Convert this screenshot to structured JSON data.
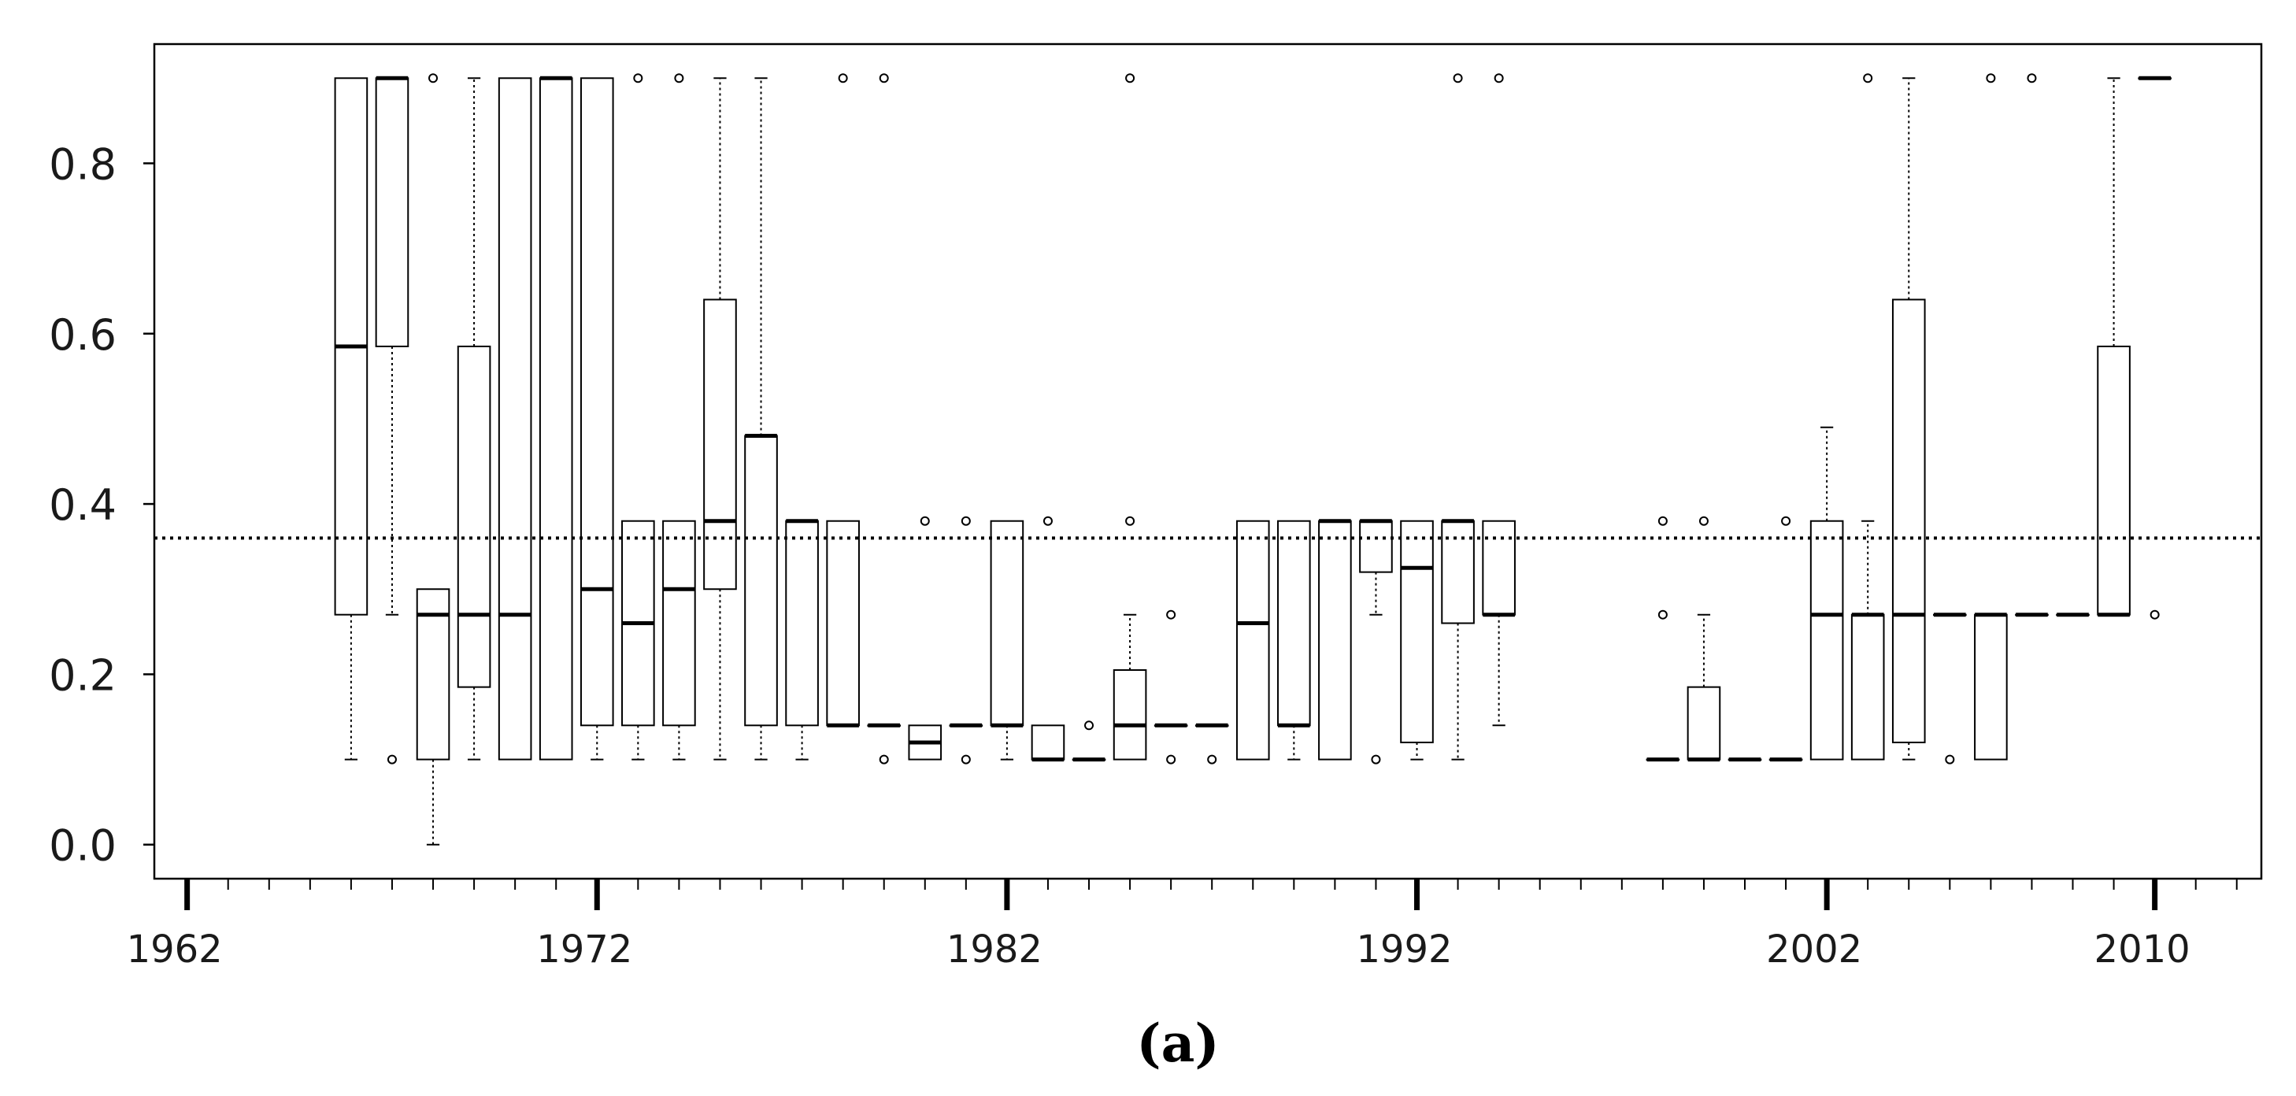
{
  "panel_label": "(a)",
  "chart_data": {
    "type": "box",
    "title": "",
    "xlabel": "",
    "ylabel": "",
    "x_ticks": [
      1962,
      1972,
      1982,
      1992,
      2002,
      2010
    ],
    "y_ticks": [
      0.0,
      0.2,
      0.4,
      0.6,
      0.8
    ],
    "y_tick_labels": [
      "0.0",
      "0.2",
      "0.4",
      "0.6",
      "0.8"
    ],
    "x_tick_labels": [
      "1962",
      "1972",
      "1982",
      "1992",
      "2002",
      "2010"
    ],
    "xlim": [
      1961.2,
      2012.6
    ],
    "ylim": [
      -0.04,
      0.94
    ],
    "reference_line": 0.36,
    "grid": false,
    "colors": {
      "box_fill": "#ffffff",
      "stroke": "#000000"
    },
    "boxes": [
      {
        "year": 1966,
        "min": 0.1,
        "q1": 0.27,
        "median": 0.585,
        "q3": 0.9,
        "max": 0.9,
        "outliers": []
      },
      {
        "year": 1967,
        "min": 0.27,
        "q1": 0.585,
        "median": 0.9,
        "q3": 0.9,
        "max": 0.9,
        "outliers": [
          0.1
        ]
      },
      {
        "year": 1968,
        "min": 0.0,
        "q1": 0.1,
        "median": 0.27,
        "q3": 0.3,
        "max": 0.3,
        "outliers": [
          0.9
        ]
      },
      {
        "year": 1969,
        "min": 0.1,
        "q1": 0.185,
        "median": 0.27,
        "q3": 0.585,
        "max": 0.9,
        "outliers": []
      },
      {
        "year": 1970,
        "min": 0.1,
        "q1": 0.1,
        "median": 0.27,
        "q3": 0.9,
        "max": 0.9,
        "outliers": []
      },
      {
        "year": 1971,
        "min": 0.1,
        "q1": 0.1,
        "median": 0.9,
        "q3": 0.9,
        "max": 0.9,
        "outliers": []
      },
      {
        "year": 1972,
        "min": 0.1,
        "q1": 0.14,
        "median": 0.3,
        "q3": 0.9,
        "max": 0.9,
        "outliers": []
      },
      {
        "year": 1973,
        "min": 0.1,
        "q1": 0.14,
        "median": 0.26,
        "q3": 0.38,
        "max": 0.38,
        "outliers": [
          0.9
        ]
      },
      {
        "year": 1974,
        "min": 0.1,
        "q1": 0.14,
        "median": 0.3,
        "q3": 0.38,
        "max": 0.38,
        "outliers": [
          0.9
        ]
      },
      {
        "year": 1975,
        "min": 0.1,
        "q1": 0.3,
        "median": 0.38,
        "q3": 0.64,
        "max": 0.9,
        "outliers": []
      },
      {
        "year": 1976,
        "min": 0.1,
        "q1": 0.14,
        "median": 0.48,
        "q3": 0.48,
        "max": 0.9,
        "outliers": []
      },
      {
        "year": 1977,
        "min": 0.1,
        "q1": 0.14,
        "median": 0.38,
        "q3": 0.38,
        "max": 0.38,
        "outliers": []
      },
      {
        "year": 1978,
        "min": 0.14,
        "q1": 0.14,
        "median": 0.14,
        "q3": 0.38,
        "max": 0.38,
        "outliers": [
          0.9
        ]
      },
      {
        "year": 1979,
        "min": 0.14,
        "q1": 0.14,
        "median": 0.14,
        "q3": 0.14,
        "max": 0.14,
        "outliers": [
          0.1,
          0.9
        ]
      },
      {
        "year": 1980,
        "min": 0.1,
        "q1": 0.1,
        "median": 0.12,
        "q3": 0.14,
        "max": 0.14,
        "outliers": [
          0.38
        ]
      },
      {
        "year": 1981,
        "min": 0.14,
        "q1": 0.14,
        "median": 0.14,
        "q3": 0.14,
        "max": 0.14,
        "outliers": [
          0.1,
          0.38
        ]
      },
      {
        "year": 1982,
        "min": 0.1,
        "q1": 0.14,
        "median": 0.14,
        "q3": 0.38,
        "max": 0.38,
        "outliers": []
      },
      {
        "year": 1983,
        "min": 0.1,
        "q1": 0.1,
        "median": 0.1,
        "q3": 0.14,
        "max": 0.14,
        "outliers": [
          0.38
        ]
      },
      {
        "year": 1984,
        "min": 0.1,
        "q1": 0.1,
        "median": 0.1,
        "q3": 0.1,
        "max": 0.1,
        "outliers": [
          0.14
        ]
      },
      {
        "year": 1985,
        "min": 0.1,
        "q1": 0.1,
        "median": 0.14,
        "q3": 0.205,
        "max": 0.27,
        "outliers": [
          0.38,
          0.9
        ]
      },
      {
        "year": 1986,
        "min": 0.14,
        "q1": 0.14,
        "median": 0.14,
        "q3": 0.14,
        "max": 0.14,
        "outliers": [
          0.1,
          0.27
        ]
      },
      {
        "year": 1987,
        "min": 0.14,
        "q1": 0.14,
        "median": 0.14,
        "q3": 0.14,
        "max": 0.14,
        "outliers": [
          0.1
        ]
      },
      {
        "year": 1988,
        "min": 0.1,
        "q1": 0.1,
        "median": 0.26,
        "q3": 0.38,
        "max": 0.38,
        "outliers": []
      },
      {
        "year": 1989,
        "min": 0.1,
        "q1": 0.14,
        "median": 0.14,
        "q3": 0.38,
        "max": 0.38,
        "outliers": []
      },
      {
        "year": 1990,
        "min": 0.1,
        "q1": 0.1,
        "median": 0.38,
        "q3": 0.38,
        "max": 0.38,
        "outliers": []
      },
      {
        "year": 1991,
        "min": 0.27,
        "q1": 0.32,
        "median": 0.38,
        "q3": 0.38,
        "max": 0.38,
        "outliers": [
          0.1
        ]
      },
      {
        "year": 1992,
        "min": 0.1,
        "q1": 0.12,
        "median": 0.325,
        "q3": 0.38,
        "max": 0.38,
        "outliers": []
      },
      {
        "year": 1993,
        "min": 0.1,
        "q1": 0.26,
        "median": 0.38,
        "q3": 0.38,
        "max": 0.38,
        "outliers": [
          0.9
        ]
      },
      {
        "year": 1994,
        "min": 0.14,
        "q1": 0.27,
        "median": 0.27,
        "q3": 0.38,
        "max": 0.38,
        "outliers": [
          0.9
        ]
      },
      {
        "year": 1998,
        "min": 0.1,
        "q1": 0.1,
        "median": 0.1,
        "q3": 0.1,
        "max": 0.1,
        "outliers": [
          0.27,
          0.38
        ]
      },
      {
        "year": 1999,
        "min": 0.1,
        "q1": 0.1,
        "median": 0.1,
        "q3": 0.185,
        "max": 0.27,
        "outliers": [
          0.38
        ]
      },
      {
        "year": 2000,
        "min": 0.1,
        "q1": 0.1,
        "median": 0.1,
        "q3": 0.1,
        "max": 0.1,
        "outliers": []
      },
      {
        "year": 2001,
        "min": 0.1,
        "q1": 0.1,
        "median": 0.1,
        "q3": 0.1,
        "max": 0.1,
        "outliers": [
          0.38
        ]
      },
      {
        "year": 2002,
        "min": 0.1,
        "q1": 0.1,
        "median": 0.27,
        "q3": 0.38,
        "max": 0.49,
        "outliers": []
      },
      {
        "year": 2003,
        "min": 0.1,
        "q1": 0.1,
        "median": 0.27,
        "q3": 0.27,
        "max": 0.38,
        "outliers": [
          0.9
        ]
      },
      {
        "year": 2004,
        "min": 0.1,
        "q1": 0.12,
        "median": 0.27,
        "q3": 0.64,
        "max": 0.9,
        "outliers": []
      },
      {
        "year": 2005,
        "min": 0.27,
        "q1": 0.27,
        "median": 0.27,
        "q3": 0.27,
        "max": 0.27,
        "outliers": [
          0.1
        ]
      },
      {
        "year": 2006,
        "min": 0.1,
        "q1": 0.1,
        "median": 0.27,
        "q3": 0.27,
        "max": 0.27,
        "outliers": [
          0.9
        ]
      },
      {
        "year": 2007,
        "min": 0.27,
        "q1": 0.27,
        "median": 0.27,
        "q3": 0.27,
        "max": 0.27,
        "outliers": [
          0.9
        ]
      },
      {
        "year": 2008,
        "min": 0.27,
        "q1": 0.27,
        "median": 0.27,
        "q3": 0.27,
        "max": 0.27,
        "outliers": []
      },
      {
        "year": 2009,
        "min": 0.27,
        "q1": 0.27,
        "median": 0.27,
        "q3": 0.585,
        "max": 0.9,
        "outliers": []
      },
      {
        "year": 2010,
        "min": 0.9,
        "q1": 0.9,
        "median": 0.9,
        "q3": 0.9,
        "max": 0.9,
        "outliers": [
          0.27
        ]
      }
    ]
  }
}
